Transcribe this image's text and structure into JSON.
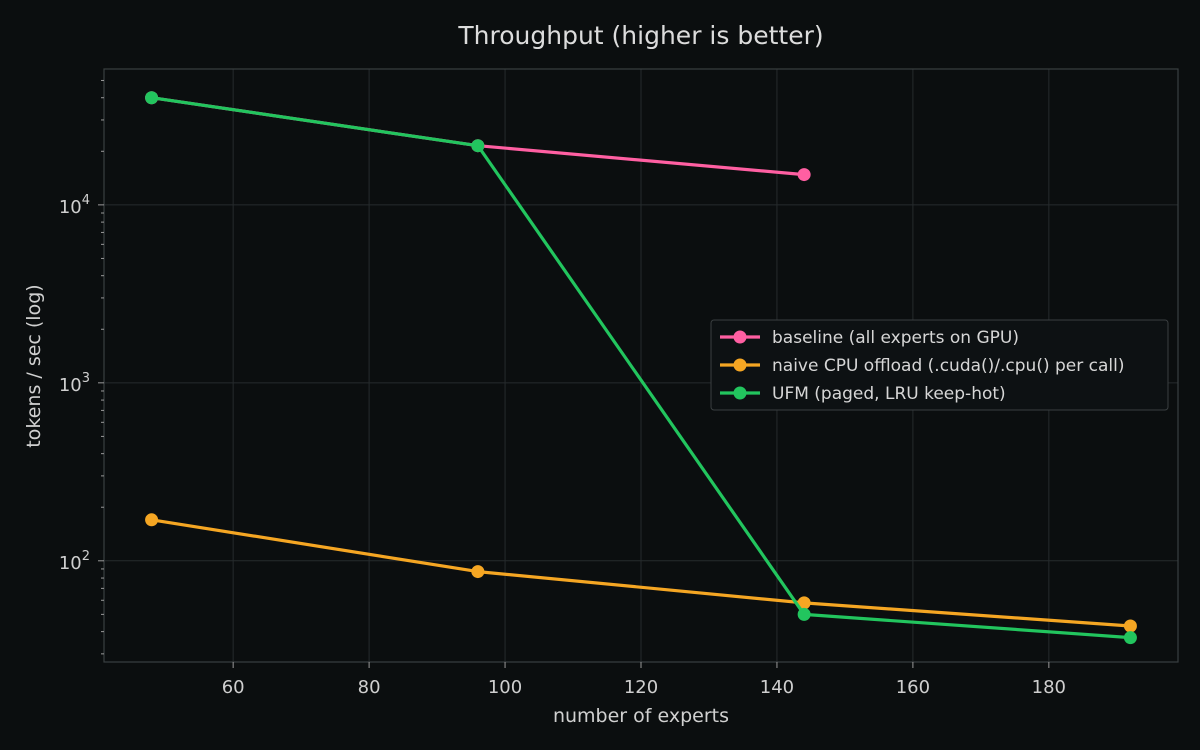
{
  "chart_data": {
    "type": "line",
    "title": "Throughput (higher is better)",
    "xlabel": "number of experts",
    "ylabel": "tokens / sec (log)",
    "yscale": "log",
    "xlim": [
      41,
      199
    ],
    "ylim": [
      27,
      58000
    ],
    "xticks": [
      60,
      80,
      100,
      120,
      140,
      160,
      180
    ],
    "yticks": [
      {
        "value": 100,
        "base": "10",
        "exp": "2"
      },
      {
        "value": 1000,
        "base": "10",
        "exp": "3"
      },
      {
        "value": 10000,
        "base": "10",
        "exp": "4"
      }
    ],
    "grid": true,
    "legend_position": "center-right",
    "series": [
      {
        "name": "baseline (all experts on GPU)",
        "color": "#ff5fa2",
        "x": [
          48,
          96,
          144
        ],
        "y": [
          40000,
          21500,
          14800
        ]
      },
      {
        "name": "naive CPU offload (.cuda()/.cpu() per call)",
        "color": "#f5a623",
        "x": [
          48,
          96,
          144,
          192
        ],
        "y": [
          170,
          87,
          58,
          43
        ]
      },
      {
        "name": "UFM (paged, LRU keep-hot)",
        "color": "#22c55e",
        "x": [
          48,
          96,
          144,
          192
        ],
        "y": [
          40000,
          21500,
          50,
          37
        ]
      }
    ]
  }
}
